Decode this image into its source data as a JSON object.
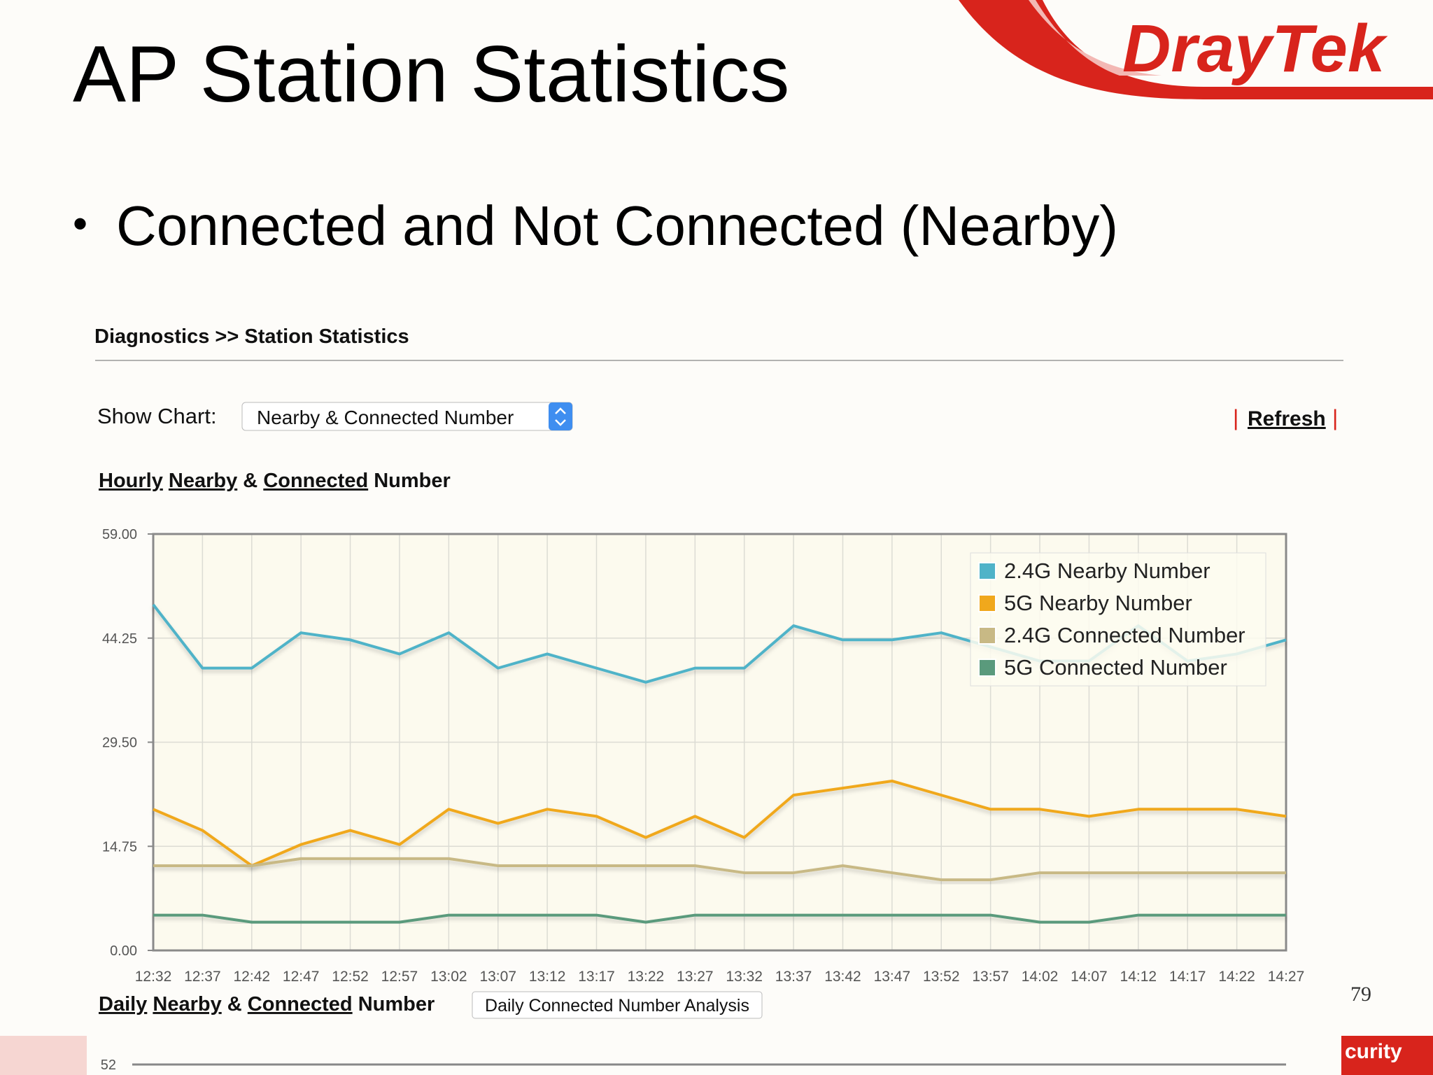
{
  "slide": {
    "title": "AP Station Statistics",
    "bullet": "Connected and Not Connected (Nearby)",
    "logo": "DrayTek",
    "page_number": "79",
    "footer": "curity"
  },
  "screen": {
    "breadcrumb": "Diagnostics >> Station Statistics",
    "show_chart_label": "Show Chart:",
    "show_chart_value": "Nearby & Connected Number",
    "refresh": "Refresh",
    "hourly_heading": [
      "Hourly",
      "Nearby",
      "&",
      "Connected",
      "Number"
    ],
    "daily_heading": [
      "Daily",
      "Nearby",
      "&",
      "Connected",
      "Number"
    ],
    "daily_button": "Daily Connected Number Analysis",
    "daily_top_tick": "52"
  },
  "chart_data": {
    "type": "line",
    "legend": "top-right",
    "grid": true,
    "categories": [
      "12:32",
      "12:37",
      "12:42",
      "12:47",
      "12:52",
      "12:57",
      "13:02",
      "13:07",
      "13:12",
      "13:17",
      "13:22",
      "13:27",
      "13:32",
      "13:37",
      "13:42",
      "13:47",
      "13:52",
      "13:57",
      "14:02",
      "14:07",
      "14:12",
      "14:17",
      "14:22",
      "14:27"
    ],
    "ylim": [
      0,
      59
    ],
    "yticks": [
      {
        "value": 0,
        "label": "0.00"
      },
      {
        "value": 14.75,
        "label": "14.75"
      },
      {
        "value": 29.5,
        "label": "29.50"
      },
      {
        "value": 44.25,
        "label": "44.25"
      },
      {
        "value": 59,
        "label": "59.00"
      }
    ],
    "series": [
      {
        "name": "2.4G Nearby Number",
        "color": "#4fb3c8",
        "values": [
          49,
          40,
          40,
          45,
          44,
          42,
          45,
          40,
          42,
          40,
          38,
          40,
          40,
          46,
          44,
          44,
          45,
          43,
          41,
          41,
          46,
          41,
          42,
          44
        ]
      },
      {
        "name": "5G Nearby Number",
        "color": "#f0a81c",
        "values": [
          20,
          17,
          12,
          15,
          17,
          15,
          20,
          18,
          20,
          19,
          16,
          19,
          16,
          22,
          23,
          24,
          22,
          20,
          20,
          19,
          20,
          20,
          20,
          19
        ]
      },
      {
        "name": "2.4G Connected Number",
        "color": "#c8b985",
        "values": [
          12,
          12,
          12,
          13,
          13,
          13,
          13,
          12,
          12,
          12,
          12,
          12,
          11,
          11,
          12,
          11,
          10,
          10,
          11,
          11,
          11,
          11,
          11,
          11
        ]
      },
      {
        "name": "5G Connected Number",
        "color": "#5a9a7c",
        "values": [
          5,
          5,
          4,
          4,
          4,
          4,
          5,
          5,
          5,
          5,
          4,
          5,
          5,
          5,
          5,
          5,
          5,
          5,
          4,
          4,
          5,
          5,
          5,
          5
        ]
      }
    ]
  }
}
